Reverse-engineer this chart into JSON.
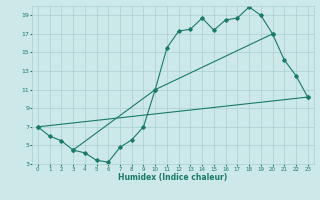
{
  "xlabel": "Humidex (Indice chaleur)",
  "ylabel": "",
  "bg_color": "#cce8e8",
  "line_color": "#1a7a6a",
  "grid_color": "#aacfcf",
  "xlim": [
    -0.5,
    23.5
  ],
  "ylim": [
    3,
    20
  ],
  "xticks": [
    0,
    1,
    2,
    3,
    4,
    5,
    6,
    7,
    8,
    9,
    10,
    11,
    12,
    13,
    14,
    15,
    16,
    17,
    18,
    19,
    20,
    21,
    22,
    23
  ],
  "yticks": [
    3,
    5,
    7,
    9,
    11,
    13,
    15,
    17,
    19
  ],
  "line1_x": [
    0,
    1,
    2,
    3,
    4,
    5,
    6,
    7,
    8,
    9,
    10,
    11,
    12,
    13,
    14,
    15,
    16,
    17,
    18,
    19,
    20,
    21,
    22,
    23
  ],
  "line1_y": [
    7.0,
    6.0,
    5.5,
    4.5,
    4.2,
    3.4,
    3.2,
    4.8,
    5.6,
    7.0,
    11.0,
    15.5,
    17.3,
    17.5,
    18.7,
    17.4,
    18.5,
    18.7,
    19.9,
    19.0,
    17.0,
    14.2,
    12.5,
    10.2
  ],
  "line2_x": [
    3,
    10,
    20
  ],
  "line2_y": [
    4.5,
    11.0,
    17.0
  ],
  "line3_x": [
    0,
    23
  ],
  "line3_y": [
    7.0,
    10.2
  ]
}
